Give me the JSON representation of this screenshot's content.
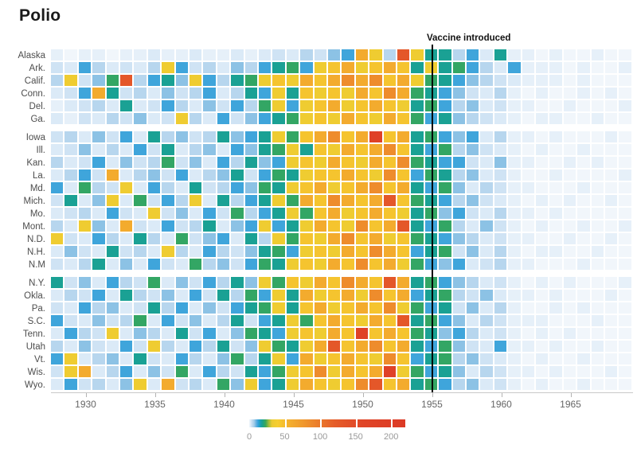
{
  "title": "Polio",
  "annotation": {
    "text": "Vaccine introduced"
  },
  "axis": {
    "tick_years": [
      1930,
      1935,
      1940,
      1945,
      1950,
      1955,
      1960,
      1965
    ]
  },
  "legend": {
    "tick_labels": [
      "0",
      "50",
      "100",
      "150",
      "200"
    ],
    "tick_values": [
      0,
      50,
      100,
      150,
      200
    ],
    "max_value": 220,
    "scale_stops": [
      [
        0,
        "#f1f6fb"
      ],
      [
        2,
        "#dbeaf7"
      ],
      [
        4,
        "#c3dcf1"
      ],
      [
        7,
        "#a0cbe8"
      ],
      [
        10,
        "#63b0e0"
      ],
      [
        13,
        "#2da0d9"
      ],
      [
        16,
        "#18a0ab"
      ],
      [
        19,
        "#1ba189"
      ],
      [
        23,
        "#3ba757"
      ],
      [
        27,
        "#96b93c"
      ],
      [
        32,
        "#ebcb31"
      ],
      [
        40,
        "#f6ce30"
      ],
      [
        55,
        "#f4b12e"
      ],
      [
        75,
        "#f0992d"
      ],
      [
        95,
        "#eb7f2b"
      ],
      [
        120,
        "#e55d29"
      ],
      [
        160,
        "#e04527"
      ],
      [
        220,
        "#dc3a26"
      ]
    ]
  },
  "chart_data": {
    "type": "heatmap",
    "title": "Polio",
    "xlabel": "",
    "ylabel": "",
    "start_year": 1928,
    "end_year": 1969,
    "years_count": 42,
    "x_tick_years": [
      1930,
      1935,
      1940,
      1945,
      1950,
      1955,
      1960,
      1965
    ],
    "vaccine_year": 1955,
    "value_range": [
      0,
      220
    ],
    "gaps_after_rows": [
      5,
      16
    ],
    "states": [
      "Alaska",
      "Ark.",
      "Calif.",
      "Conn.",
      "Del.",
      "Ga.",
      "Iowa",
      "Ill.",
      "Kan.",
      "La.",
      "Md.",
      "Mich.",
      "Mo.",
      "Mont.",
      "N.D.",
      "N.H.",
      "N.M",
      "N.Y.",
      "Okla.",
      "Pa.",
      "S.C.",
      "Tenn.",
      "Utah",
      "Vt.",
      "Wis.",
      "Wyo."
    ],
    "values": [
      [
        1,
        0,
        1,
        1,
        0,
        1,
        1,
        2,
        1,
        1,
        2,
        1,
        1,
        2,
        1,
        2,
        3,
        2,
        5,
        3,
        8,
        12,
        60,
        35,
        5,
        130,
        35,
        18,
        18,
        5,
        12,
        2,
        18,
        1,
        1,
        0,
        1,
        0,
        0,
        1,
        0,
        0
      ],
      [
        3,
        2,
        12,
        5,
        2,
        3,
        2,
        5,
        35,
        12,
        3,
        5,
        2,
        8,
        5,
        12,
        18,
        22,
        12,
        35,
        45,
        60,
        35,
        45,
        60,
        45,
        18,
        35,
        18,
        22,
        12,
        5,
        2,
        12,
        1,
        1,
        1,
        0,
        1,
        0,
        0,
        1
      ],
      [
        5,
        35,
        3,
        8,
        22,
        130,
        5,
        12,
        18,
        8,
        35,
        12,
        5,
        18,
        22,
        35,
        45,
        35,
        60,
        45,
        60,
        85,
        60,
        85,
        45,
        60,
        35,
        22,
        18,
        12,
        8,
        5,
        3,
        2,
        1,
        1,
        1,
        0,
        1,
        0,
        0,
        0
      ],
      [
        2,
        3,
        12,
        60,
        18,
        3,
        5,
        2,
        8,
        3,
        5,
        12,
        2,
        5,
        18,
        12,
        35,
        18,
        45,
        35,
        45,
        35,
        60,
        45,
        85,
        60,
        22,
        18,
        12,
        8,
        3,
        2,
        5,
        1,
        0,
        1,
        0,
        0,
        1,
        0,
        1,
        0
      ],
      [
        1,
        2,
        3,
        5,
        2,
        18,
        2,
        3,
        12,
        5,
        2,
        8,
        3,
        12,
        5,
        22,
        35,
        12,
        35,
        45,
        60,
        35,
        45,
        60,
        45,
        35,
        18,
        22,
        12,
        5,
        8,
        2,
        3,
        1,
        1,
        0,
        0,
        1,
        0,
        0,
        0,
        1
      ],
      [
        2,
        1,
        3,
        2,
        5,
        3,
        8,
        2,
        3,
        35,
        5,
        2,
        12,
        3,
        8,
        12,
        18,
        22,
        35,
        45,
        35,
        60,
        45,
        35,
        60,
        45,
        22,
        12,
        18,
        8,
        5,
        3,
        2,
        1,
        0,
        1,
        1,
        0,
        0,
        1,
        0,
        0
      ],
      [
        3,
        5,
        2,
        8,
        3,
        12,
        2,
        18,
        5,
        8,
        3,
        5,
        18,
        8,
        12,
        18,
        35,
        22,
        45,
        60,
        85,
        45,
        60,
        180,
        45,
        60,
        18,
        22,
        12,
        8,
        12,
        2,
        5,
        1,
        1,
        0,
        1,
        0,
        0,
        0,
        1,
        0
      ],
      [
        2,
        3,
        8,
        2,
        5,
        2,
        12,
        3,
        18,
        2,
        5,
        8,
        2,
        12,
        8,
        18,
        22,
        35,
        18,
        45,
        35,
        60,
        45,
        60,
        85,
        45,
        18,
        12,
        22,
        5,
        8,
        3,
        2,
        1,
        0,
        1,
        0,
        0,
        1,
        0,
        0,
        0
      ],
      [
        5,
        2,
        3,
        12,
        2,
        8,
        3,
        5,
        22,
        3,
        8,
        2,
        12,
        5,
        18,
        8,
        12,
        35,
        45,
        35,
        60,
        45,
        35,
        60,
        45,
        85,
        22,
        18,
        12,
        12,
        3,
        2,
        8,
        1,
        1,
        0,
        0,
        1,
        0,
        1,
        0,
        0
      ],
      [
        2,
        5,
        12,
        3,
        60,
        2,
        5,
        8,
        3,
        12,
        2,
        5,
        8,
        18,
        3,
        12,
        22,
        18,
        35,
        45,
        45,
        60,
        45,
        35,
        85,
        45,
        12,
        22,
        18,
        5,
        8,
        2,
        3,
        1,
        0,
        0,
        1,
        0,
        0,
        0,
        0,
        1
      ],
      [
        12,
        2,
        22,
        5,
        3,
        35,
        2,
        12,
        5,
        2,
        18,
        3,
        5,
        12,
        8,
        22,
        18,
        35,
        45,
        60,
        35,
        45,
        60,
        85,
        45,
        60,
        18,
        12,
        22,
        8,
        2,
        5,
        3,
        1,
        1,
        0,
        0,
        0,
        1,
        0,
        0,
        0
      ],
      [
        3,
        18,
        2,
        8,
        35,
        2,
        22,
        3,
        12,
        5,
        35,
        2,
        18,
        5,
        12,
        18,
        35,
        22,
        60,
        45,
        85,
        60,
        45,
        60,
        130,
        45,
        22,
        18,
        12,
        5,
        8,
        3,
        2,
        1,
        0,
        1,
        0,
        1,
        0,
        0,
        1,
        0
      ],
      [
        2,
        3,
        5,
        2,
        12,
        3,
        2,
        35,
        3,
        8,
        2,
        12,
        3,
        22,
        5,
        12,
        18,
        35,
        22,
        45,
        60,
        35,
        45,
        60,
        45,
        35,
        18,
        22,
        8,
        12,
        3,
        2,
        5,
        1,
        1,
        0,
        1,
        0,
        0,
        0,
        0,
        0
      ],
      [
        5,
        2,
        35,
        8,
        2,
        60,
        3,
        2,
        12,
        3,
        5,
        18,
        2,
        8,
        12,
        35,
        12,
        18,
        35,
        60,
        45,
        35,
        85,
        45,
        60,
        130,
        18,
        12,
        22,
        5,
        2,
        8,
        3,
        1,
        0,
        1,
        0,
        0,
        1,
        0,
        0,
        1
      ],
      [
        35,
        3,
        2,
        12,
        5,
        2,
        18,
        5,
        2,
        22,
        3,
        8,
        12,
        2,
        18,
        5,
        35,
        22,
        45,
        35,
        60,
        85,
        45,
        60,
        35,
        45,
        22,
        18,
        12,
        8,
        5,
        2,
        3,
        1,
        1,
        0,
        0,
        1,
        0,
        0,
        1,
        0
      ],
      [
        2,
        8,
        3,
        2,
        18,
        3,
        5,
        2,
        35,
        5,
        2,
        12,
        5,
        3,
        8,
        18,
        22,
        12,
        35,
        45,
        35,
        60,
        45,
        85,
        60,
        45,
        12,
        18,
        22,
        3,
        8,
        2,
        5,
        1,
        0,
        1,
        1,
        0,
        0,
        1,
        0,
        0
      ],
      [
        3,
        2,
        5,
        18,
        2,
        8,
        2,
        12,
        3,
        2,
        22,
        5,
        8,
        3,
        12,
        22,
        18,
        35,
        45,
        35,
        60,
        45,
        85,
        45,
        60,
        35,
        22,
        12,
        8,
        12,
        2,
        3,
        5,
        1,
        1,
        0,
        0,
        0,
        1,
        0,
        0,
        0
      ],
      [
        18,
        3,
        8,
        2,
        12,
        5,
        3,
        22,
        2,
        8,
        3,
        12,
        5,
        18,
        8,
        35,
        22,
        45,
        35,
        60,
        45,
        85,
        60,
        45,
        130,
        60,
        18,
        22,
        12,
        8,
        5,
        2,
        3,
        1,
        0,
        1,
        0,
        1,
        0,
        0,
        0,
        1
      ],
      [
        2,
        5,
        3,
        12,
        2,
        18,
        5,
        3,
        8,
        2,
        12,
        3,
        18,
        5,
        22,
        12,
        35,
        18,
        60,
        35,
        45,
        60,
        35,
        85,
        45,
        60,
        12,
        18,
        22,
        5,
        3,
        8,
        2,
        1,
        1,
        0,
        1,
        0,
        0,
        0,
        1,
        0
      ],
      [
        3,
        2,
        12,
        5,
        8,
        2,
        3,
        18,
        5,
        12,
        2,
        8,
        3,
        12,
        18,
        22,
        35,
        18,
        45,
        60,
        35,
        45,
        60,
        45,
        85,
        35,
        22,
        12,
        18,
        3,
        8,
        2,
        5,
        1,
        0,
        0,
        1,
        0,
        1,
        0,
        0,
        0
      ],
      [
        12,
        3,
        2,
        8,
        3,
        5,
        22,
        2,
        12,
        3,
        8,
        2,
        5,
        18,
        3,
        12,
        18,
        35,
        22,
        45,
        60,
        45,
        35,
        60,
        45,
        130,
        18,
        22,
        12,
        8,
        2,
        5,
        3,
        1,
        1,
        1,
        0,
        0,
        0,
        1,
        0,
        0
      ],
      [
        2,
        12,
        5,
        3,
        35,
        2,
        8,
        5,
        2,
        18,
        3,
        12,
        2,
        8,
        22,
        18,
        12,
        35,
        45,
        35,
        60,
        45,
        180,
        45,
        60,
        45,
        22,
        18,
        8,
        12,
        5,
        2,
        3,
        1,
        0,
        1,
        0,
        1,
        0,
        0,
        0,
        0
      ],
      [
        5,
        2,
        8,
        3,
        2,
        12,
        3,
        35,
        5,
        2,
        12,
        5,
        18,
        3,
        8,
        35,
        22,
        18,
        35,
        60,
        130,
        45,
        60,
        85,
        45,
        60,
        18,
        12,
        22,
        8,
        3,
        2,
        12,
        1,
        1,
        0,
        1,
        0,
        0,
        1,
        0,
        0
      ],
      [
        12,
        35,
        2,
        5,
        8,
        2,
        18,
        3,
        2,
        12,
        5,
        2,
        8,
        22,
        5,
        18,
        35,
        12,
        60,
        35,
        45,
        60,
        45,
        35,
        85,
        45,
        12,
        18,
        22,
        5,
        8,
        3,
        2,
        1,
        0,
        1,
        0,
        0,
        1,
        0,
        0,
        0
      ],
      [
        3,
        35,
        60,
        2,
        5,
        12,
        2,
        8,
        3,
        22,
        2,
        12,
        5,
        3,
        18,
        12,
        22,
        35,
        45,
        85,
        35,
        60,
        45,
        60,
        180,
        35,
        22,
        12,
        18,
        8,
        2,
        5,
        3,
        1,
        1,
        0,
        1,
        0,
        0,
        0,
        1,
        0
      ],
      [
        2,
        12,
        3,
        5,
        2,
        8,
        35,
        2,
        60,
        3,
        5,
        2,
        22,
        8,
        35,
        12,
        18,
        35,
        60,
        45,
        35,
        45,
        85,
        130,
        45,
        60,
        18,
        22,
        12,
        5,
        8,
        2,
        3,
        1,
        0,
        1,
        0,
        0,
        1,
        0,
        0,
        0
      ]
    ]
  }
}
